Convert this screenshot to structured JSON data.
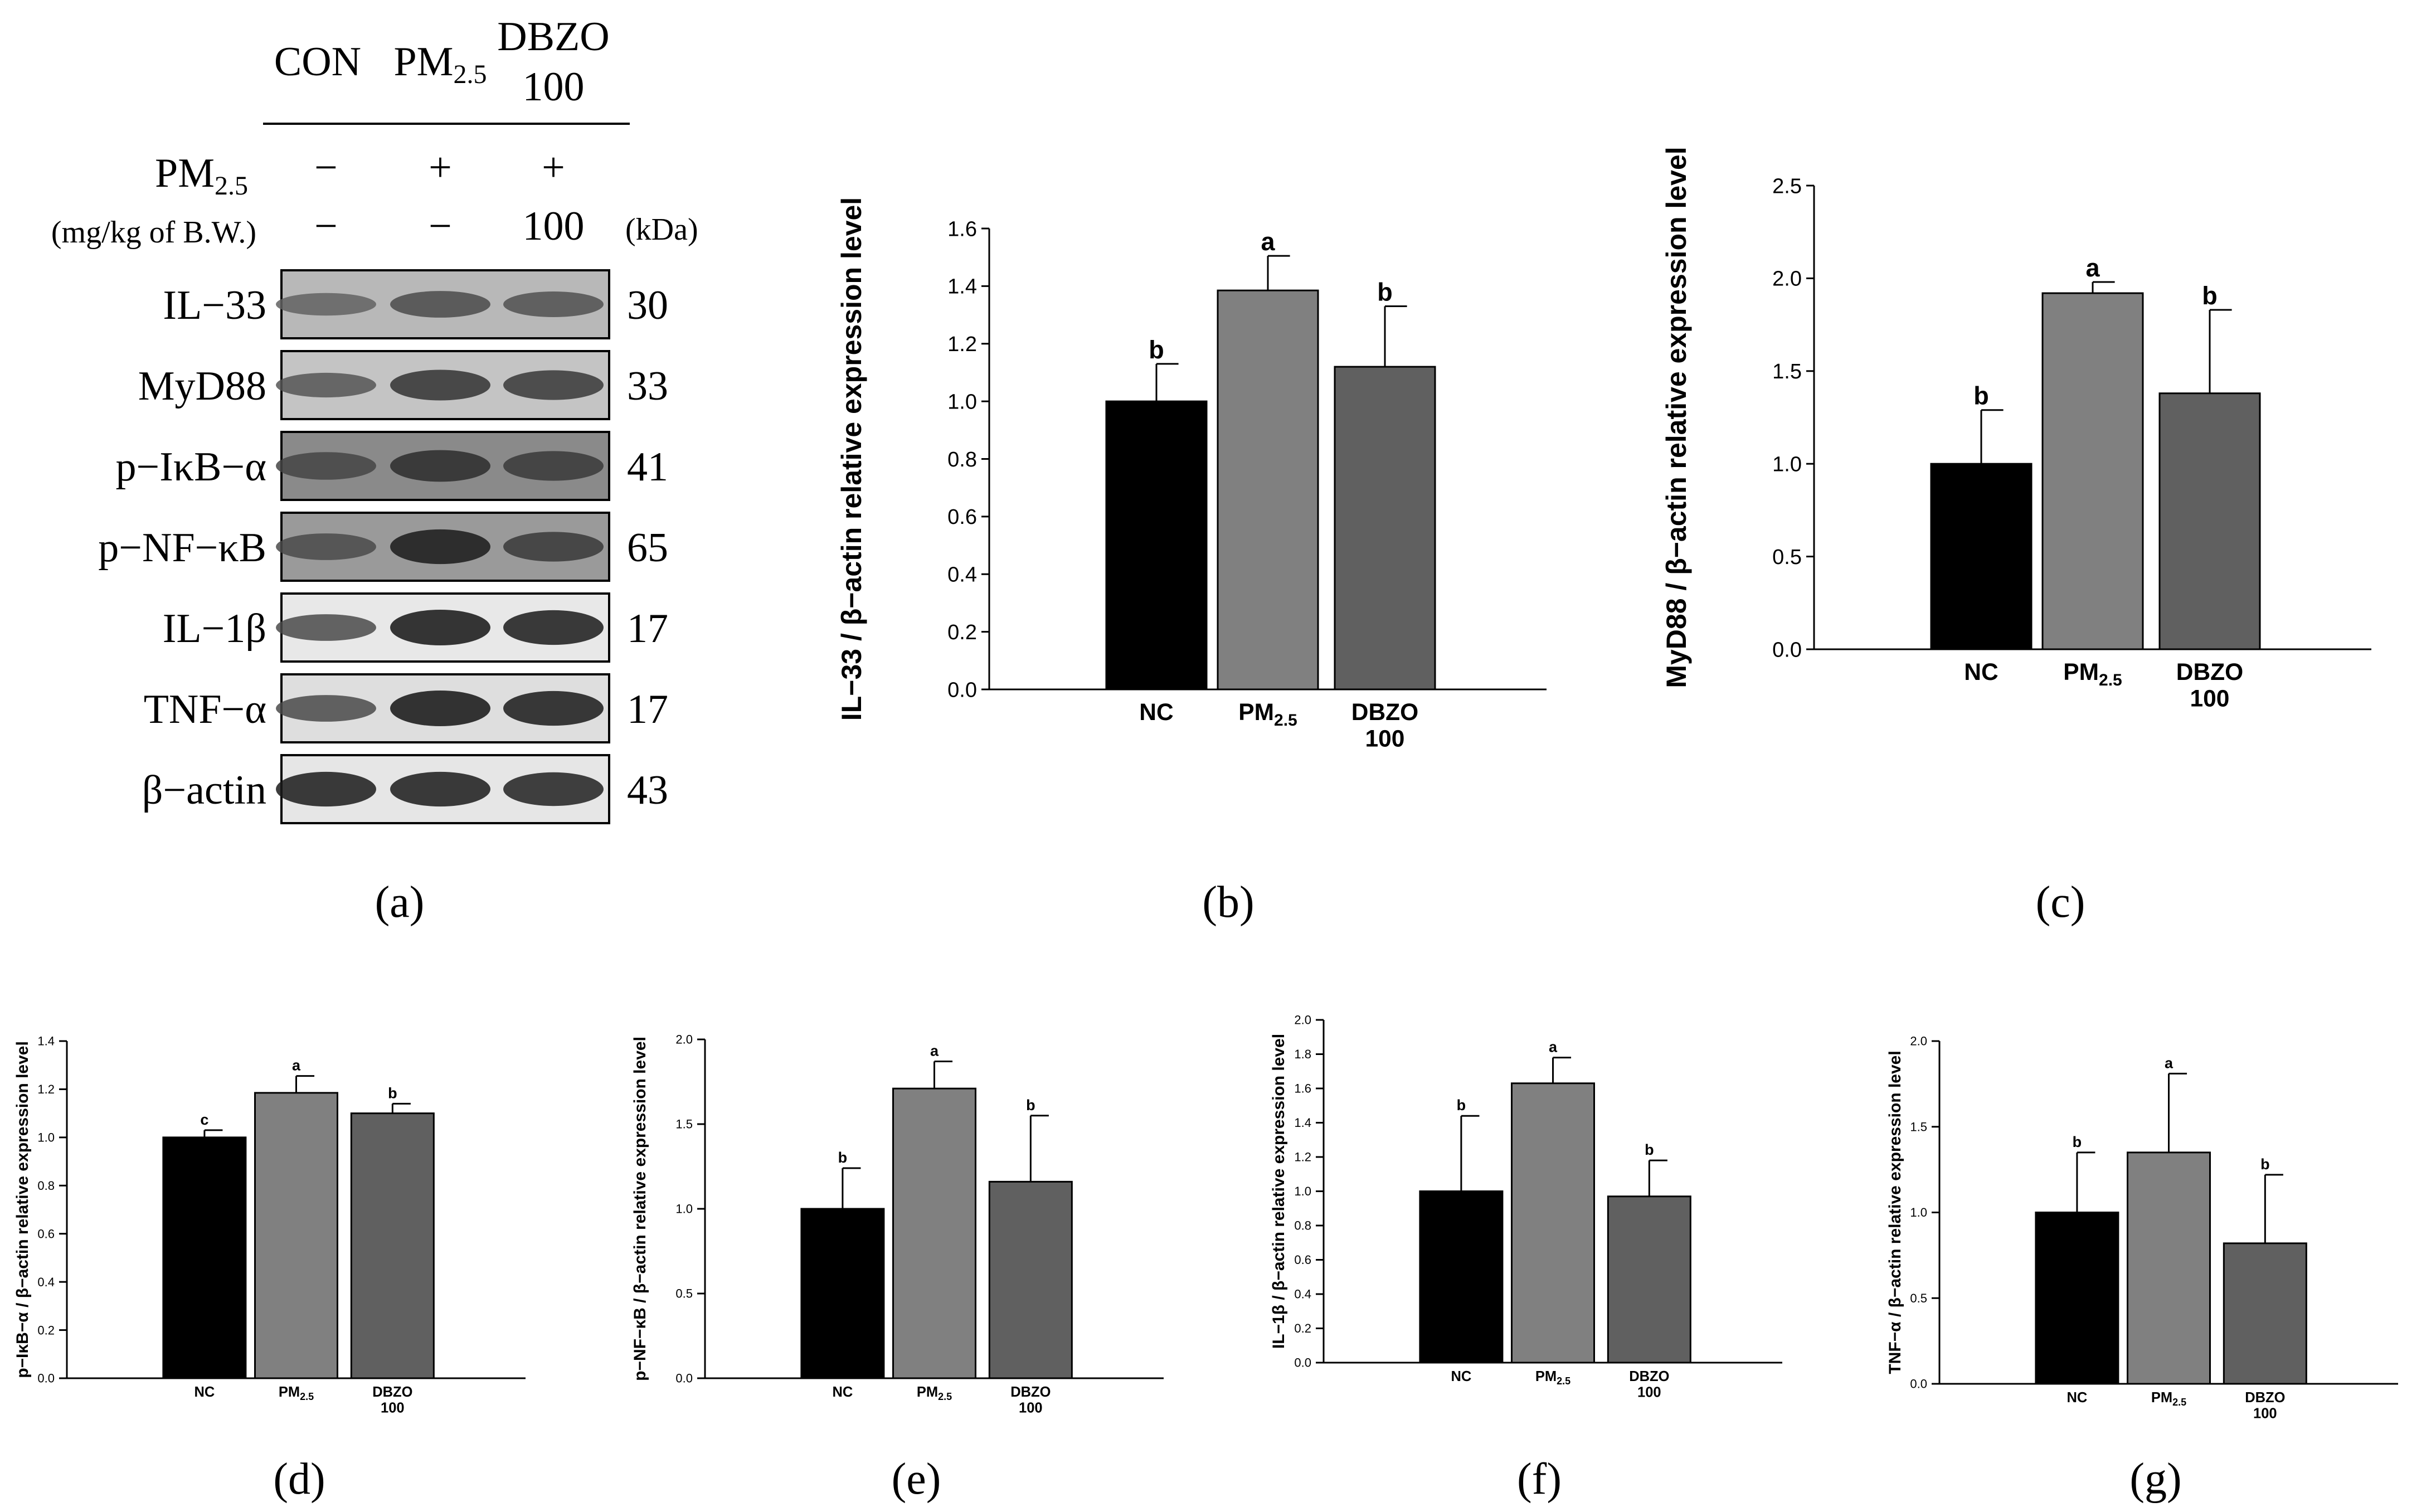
{
  "panel_a": {
    "header_labels": [
      "CON",
      "PM",
      "DBZO",
      "100"
    ],
    "header_pm_sub": "2.5",
    "row1_label": "PM",
    "row1_label_sub": "2.5",
    "row1_values": [
      "−",
      "+",
      "+"
    ],
    "row2_label": "(mg/kg of B.W.)",
    "row2_values": [
      "−",
      "−",
      "100"
    ],
    "kda_label": "(kDa)",
    "blots": [
      {
        "name": "IL−33",
        "kda": "30"
      },
      {
        "name": "MyD88",
        "kda": "33"
      },
      {
        "name": "p−IκB−α",
        "kda": "41"
      },
      {
        "name": "p−NF−κB",
        "kda": "65"
      },
      {
        "name": "IL−1β",
        "kda": "17"
      },
      {
        "name": "TNF−α",
        "kda": "17"
      },
      {
        "name": "β−actin",
        "kda": "43"
      }
    ]
  },
  "panel_labels": [
    "(a)",
    "(b)",
    "(c)",
    "(d)",
    "(e)",
    "(f)",
    "(g)"
  ],
  "bar_colors": [
    "#000000",
    "#808080",
    "#606060"
  ],
  "chart_data": [
    {
      "id": "b",
      "type": "bar",
      "ylabel": "IL−33 / β−actin relative expression level",
      "categories": [
        "NC",
        "PM2.5",
        "DBZO 100"
      ],
      "values": [
        1.0,
        1.385,
        1.12
      ],
      "errors": [
        0.13,
        0.12,
        0.21
      ],
      "sig": [
        "b",
        "a",
        "b"
      ],
      "ylim": [
        0,
        1.6
      ],
      "ticks": [
        "0.0",
        "0.2",
        "0.4",
        "0.6",
        "0.8",
        "1.0",
        "1.2",
        "1.4",
        "1.6"
      ]
    },
    {
      "id": "c",
      "type": "bar",
      "ylabel": "MyD88 / β−actin relative expression level",
      "categories": [
        "NC",
        "PM2.5",
        "DBZO 100"
      ],
      "values": [
        1.0,
        1.92,
        1.38
      ],
      "errors": [
        0.29,
        0.06,
        0.45
      ],
      "sig": [
        "b",
        "a",
        "b"
      ],
      "ylim": [
        0,
        2.5
      ],
      "ticks": [
        "0.0",
        "0.5",
        "1.0",
        "1.5",
        "2.0",
        "2.5"
      ]
    },
    {
      "id": "d",
      "type": "bar",
      "ylabel": "p−IκB−α / β−actin relative expression level",
      "categories": [
        "NC",
        "PM2.5",
        "DBZO 100"
      ],
      "values": [
        1.0,
        1.185,
        1.1
      ],
      "errors": [
        0.03,
        0.07,
        0.04
      ],
      "sig": [
        "c",
        "a",
        "b"
      ],
      "ylim": [
        0,
        1.4
      ],
      "ticks": [
        "0.0",
        "0.2",
        "0.4",
        "0.6",
        "0.8",
        "1.0",
        "1.2",
        "1.4"
      ]
    },
    {
      "id": "e",
      "type": "bar",
      "ylabel": "p−NF−κB / β−actin relative expression level",
      "categories": [
        "NC",
        "PM2.5",
        "DBZO 100"
      ],
      "values": [
        1.0,
        1.71,
        1.16
      ],
      "errors": [
        0.24,
        0.16,
        0.39
      ],
      "sig": [
        "b",
        "a",
        "b"
      ],
      "ylim": [
        0,
        2.0
      ],
      "ticks": [
        "0.0",
        "0.5",
        "1.0",
        "1.5",
        "2.0"
      ]
    },
    {
      "id": "f",
      "type": "bar",
      "ylabel": "IL−1β / β−actin relative expression level",
      "categories": [
        "NC",
        "PM2.5",
        "DBZO 100"
      ],
      "values": [
        1.0,
        1.63,
        0.97
      ],
      "errors": [
        0.44,
        0.15,
        0.21
      ],
      "sig": [
        "b",
        "a",
        "b"
      ],
      "ylim": [
        0,
        2.0
      ],
      "ticks": [
        "0.0",
        "0.2",
        "0.4",
        "0.6",
        "0.8",
        "1.0",
        "1.2",
        "1.4",
        "1.6",
        "1.8",
        "2.0"
      ]
    },
    {
      "id": "g",
      "type": "bar",
      "ylabel": "TNF−α / β−actin relative expression level",
      "categories": [
        "NC",
        "PM2.5",
        "DBZO 100"
      ],
      "values": [
        1.0,
        1.35,
        0.82
      ],
      "errors": [
        0.35,
        0.46,
        0.4
      ],
      "sig": [
        "b",
        "a",
        "b"
      ],
      "ylim": [
        0,
        2.0
      ],
      "ticks": [
        "0.0",
        "0.5",
        "1.0",
        "1.5",
        "2.0"
      ]
    }
  ]
}
